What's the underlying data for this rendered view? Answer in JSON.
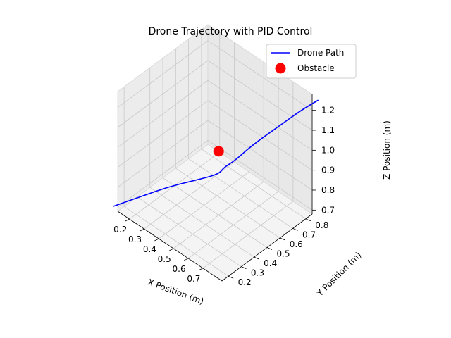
{
  "chart_data": {
    "type": "line3d",
    "title": "Drone Trajectory with PID Control",
    "xlabel": "X Position (m)",
    "ylabel": "Y Position (m)",
    "zlabel": "Z Position (m)",
    "xlim": [
      0.12,
      0.83
    ],
    "ylim": [
      0.15,
      0.85
    ],
    "zlim": [
      0.68,
      1.28
    ],
    "x_ticks": [
      "0.2",
      "0.3",
      "0.4",
      "0.5",
      "0.6",
      "0.7"
    ],
    "y_ticks": [
      "0.2",
      "0.3",
      "0.4",
      "0.5",
      "0.6",
      "0.7",
      "0.8"
    ],
    "z_ticks": [
      "0.7",
      "0.8",
      "0.9",
      "1.0",
      "1.1",
      "1.2"
    ],
    "grid": true,
    "legend": {
      "placement": "top-right",
      "entries": [
        "Drone Path",
        "Obstacle"
      ]
    },
    "series": [
      {
        "name": "Drone Path",
        "color": "#0000ff",
        "x": [
          0.12,
          0.22,
          0.32,
          0.42,
          0.5,
          0.52,
          0.56,
          0.62,
          0.72,
          0.8,
          0.86
        ],
        "y": [
          0.12,
          0.22,
          0.32,
          0.42,
          0.5,
          0.52,
          0.56,
          0.62,
          0.72,
          0.8,
          0.86
        ],
        "z": [
          0.72,
          0.77,
          0.82,
          0.855,
          0.885,
          0.92,
          0.955,
          1.03,
          1.13,
          1.21,
          1.26
        ]
      }
    ],
    "obstacle": {
      "name": "Obstacle",
      "color": "#ff0000",
      "x": 0.5,
      "y": 0.5,
      "z": 1.0
    }
  }
}
